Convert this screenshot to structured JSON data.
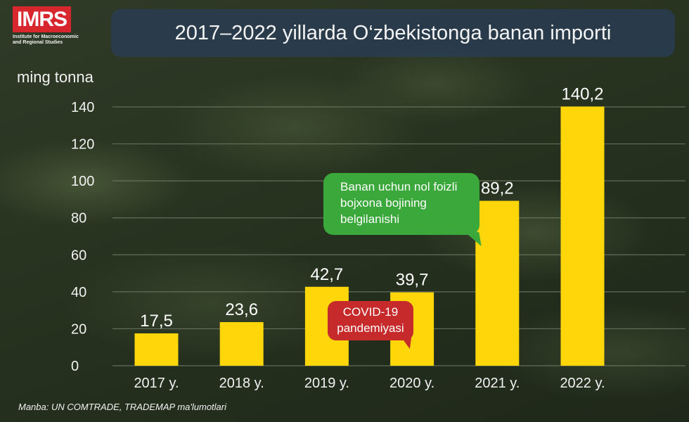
{
  "logo": {
    "mark": "IMRS",
    "subtitle": "Institute for Macroeconomic and Regional Studies"
  },
  "header": {
    "title": "2017–2022 yillarda O‘zbekistonga banan importi"
  },
  "unit_label": "ming tonna",
  "source": "Manba: UN COMTRADE, TRADEMAP ma'lumotlari",
  "annotations": {
    "zero_tariff": "Banan uchun nol foizli bojxona bojining belgilanishi",
    "covid": "COVID-19 pandemiyasi"
  },
  "colors": {
    "bar": "#ffd60a",
    "green_callout": "#3aa83a",
    "red_callout": "#c62a2a",
    "title_bar": "#2a3e5c"
  },
  "chart_data": {
    "type": "bar",
    "categories": [
      "2017 y.",
      "2018 y.",
      "2019 y.",
      "2020 y.",
      "2021 y.",
      "2022 y."
    ],
    "values": [
      17.5,
      23.6,
      42.7,
      39.7,
      89.2,
      140.2
    ],
    "value_labels": [
      "17,5",
      "23,6",
      "42,7",
      "39,7",
      "89,2",
      "140,2"
    ],
    "ylabel": "ming tonna",
    "ylim": [
      0,
      140
    ],
    "yticks": [
      0,
      20,
      40,
      60,
      80,
      100,
      120,
      140
    ],
    "grid": true,
    "legend": "none"
  }
}
